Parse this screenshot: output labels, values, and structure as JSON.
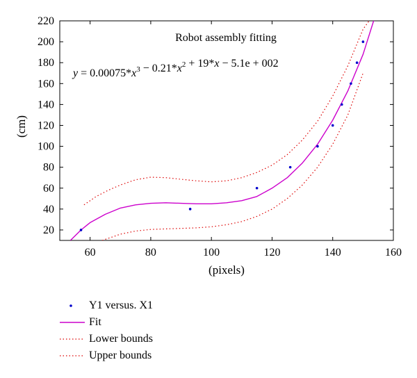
{
  "chart_data": {
    "type": "scatter",
    "title": "Robot assembly fitting",
    "equation_parts": {
      "lhs": "y",
      "eq": " = 0.00075*",
      "x1": "x",
      "p3": "3",
      "mid1": " − 0.21*",
      "x2": "x",
      "p2": "2",
      "mid2": " + 19*",
      "x3": "x",
      "tail": " − 5.1e + 002"
    },
    "xlabel": "(pixels)",
    "ylabel": "(cm)",
    "xlim": [
      50,
      160
    ],
    "ylim": [
      10,
      220
    ],
    "xticks": [
      60,
      80,
      100,
      120,
      140,
      160
    ],
    "yticks": [
      20,
      40,
      60,
      80,
      100,
      120,
      140,
      160,
      180,
      200,
      220
    ],
    "fit_coefficients": [
      0.00075,
      -0.21,
      19,
      -510
    ],
    "colors": {
      "points": "#0000cc",
      "fit": "#cc00cc",
      "bounds": "#dd0000"
    },
    "series": [
      {
        "name": "Y1 versus. X1",
        "kind": "points",
        "x": [
          57,
          93,
          115,
          126,
          135,
          140,
          143,
          146,
          148,
          150
        ],
        "y": [
          20,
          40,
          60,
          80,
          100,
          120,
          140,
          160,
          180,
          200
        ]
      },
      {
        "name": "Fit",
        "kind": "fit-curve",
        "x": [
          53.5,
          57,
          60,
          65,
          70,
          75,
          80,
          85,
          90,
          95,
          100,
          105,
          110,
          115,
          120,
          125,
          130,
          135,
          140,
          145,
          150,
          153.5
        ],
        "y": [
          10,
          20,
          27,
          35,
          41,
          44,
          45.5,
          46,
          45.5,
          45,
          45,
          46,
          48,
          52,
          60,
          70,
          84,
          102,
          125,
          153,
          188,
          220
        ]
      },
      {
        "name": "Lower bounds",
        "kind": "bounds",
        "x": [
          64,
          70,
          75,
          80,
          85,
          90,
          95,
          100,
          105,
          110,
          115,
          120,
          125,
          130,
          135,
          140,
          145,
          150
        ],
        "y": [
          10,
          16,
          19,
          20.5,
          21,
          21.5,
          22,
          23,
          25,
          28,
          33,
          40,
          50,
          63,
          80,
          102,
          130,
          170
        ]
      },
      {
        "name": "Upper bounds",
        "kind": "bounds",
        "x": [
          58,
          62,
          66,
          70,
          75,
          80,
          85,
          90,
          95,
          100,
          105,
          110,
          115,
          120,
          125,
          130,
          135,
          140,
          145,
          150,
          152
        ],
        "y": [
          44,
          52,
          58,
          63,
          68,
          70.5,
          70,
          68.5,
          67,
          66,
          67,
          70,
          75,
          82,
          92,
          106,
          124,
          148,
          177,
          212,
          220
        ]
      }
    ],
    "legend_position": "bottom-left"
  }
}
